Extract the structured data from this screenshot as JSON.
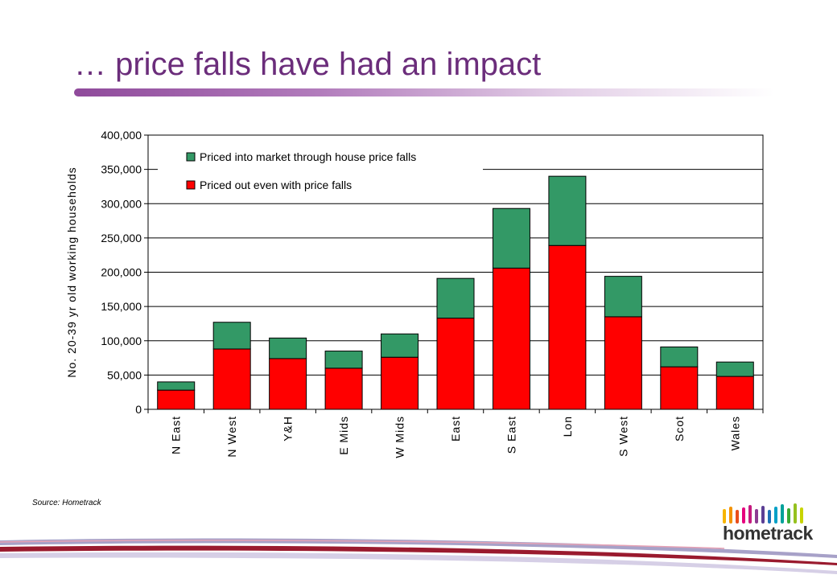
{
  "slide": {
    "title": "… price falls have had an impact",
    "source": "Source: Hometrack"
  },
  "logo": {
    "text": "hometrack"
  },
  "colors": {
    "title": "#6b2d7b",
    "priced_in": "#339966",
    "priced_out": "#ff0000"
  },
  "chart_data": {
    "type": "bar",
    "stacked": true,
    "categories": [
      "N East",
      "N West",
      "Y&H",
      "E Mids",
      "W Mids",
      "East",
      "S East",
      "Lon",
      "S West",
      "Scot",
      "Wales"
    ],
    "series": [
      {
        "name": "Priced out even with price falls",
        "color": "#ff0000",
        "values": [
          28000,
          88000,
          74000,
          60000,
          76000,
          133000,
          206000,
          239000,
          135000,
          62000,
          48000
        ]
      },
      {
        "name": "Priced into market through house price falls",
        "color": "#339966",
        "values": [
          12000,
          39000,
          30000,
          25000,
          34000,
          58000,
          87000,
          101000,
          59000,
          29000,
          21000
        ]
      }
    ],
    "ylabel": "No. 20-39 yr old working households",
    "xlabel": "",
    "ylim": [
      0,
      400000
    ],
    "yticks": [
      0,
      50000,
      100000,
      150000,
      200000,
      250000,
      300000,
      350000,
      400000
    ],
    "ytick_labels": [
      "0",
      "50,000",
      "100,000",
      "150,000",
      "200,000",
      "250,000",
      "300,000",
      "350,000",
      "400,000"
    ],
    "grid": true,
    "legend_position": "top-left",
    "legend": [
      "Priced into market through house price falls",
      "Priced out even with price falls"
    ]
  }
}
